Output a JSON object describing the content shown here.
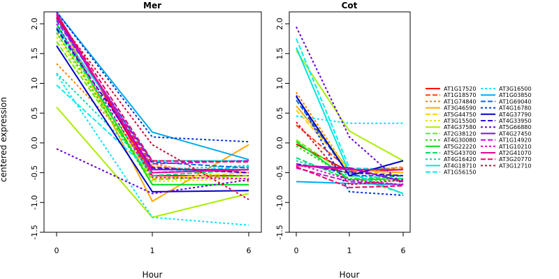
{
  "chart_data": {
    "type": "line",
    "ylabel": "centered expression",
    "xlabel": "Hour",
    "x_ticks": [
      "0",
      "1",
      "6"
    ],
    "y_ticks": [
      "-1.5",
      "-1.0",
      "-0.5",
      "0.0",
      "0.5",
      "1.0",
      "1.5",
      "2.0"
    ],
    "ylim": [
      -1.5,
      2.2
    ],
    "legend_position": "right",
    "series_styles": [
      {
        "color": "#ff0000",
        "dash": "solid"
      },
      {
        "color": "#ff4000",
        "dash": "longdash"
      },
      {
        "color": "#ff8000",
        "dash": "dashed"
      },
      {
        "color": "#ffaa00",
        "dash": "solid"
      },
      {
        "color": "#ffd000",
        "dash": "longdash"
      },
      {
        "color": "#e6e600",
        "dash": "dashed"
      },
      {
        "color": "#aaee00",
        "dash": "solid"
      },
      {
        "color": "#66ee00",
        "dash": "longdash"
      },
      {
        "color": "#22dd00",
        "dash": "dashed"
      },
      {
        "color": "#00dd22",
        "dash": "solid"
      },
      {
        "color": "#00dd66",
        "dash": "longdash"
      },
      {
        "color": "#00ddaa",
        "dash": "dashed"
      },
      {
        "color": "#00e6dd",
        "dash": "solid"
      },
      {
        "color": "#00eeee",
        "dash": "longdash"
      },
      {
        "color": "#00e5ff",
        "dash": "dashed"
      },
      {
        "color": "#00aaee",
        "dash": "solid"
      },
      {
        "color": "#0066ee",
        "dash": "longdash"
      },
      {
        "color": "#0033dd",
        "dash": "dashed"
      },
      {
        "color": "#0000cc",
        "dash": "solid"
      },
      {
        "color": "#3300dd",
        "dash": "longdash"
      },
      {
        "color": "#6600dd",
        "dash": "dashed"
      },
      {
        "color": "#9900dd",
        "dash": "solid"
      },
      {
        "color": "#cc00dd",
        "dash": "longdash"
      },
      {
        "color": "#dd00cc",
        "dash": "dashed"
      },
      {
        "color": "#ee0099",
        "dash": "solid"
      },
      {
        "color": "#ee0066",
        "dash": "longdash"
      },
      {
        "color": "#dd0033",
        "dash": "dashed"
      }
    ],
    "legend_entries": [
      "AT1G17520",
      "AT1G18570",
      "AT1G74840",
      "AT3G46590",
      "AT5G44750",
      "AT3G15500",
      "AT4G37580",
      "AT2G38120",
      "AT4G30080",
      "AT5G22220",
      "AT5G43700",
      "AT4G16420",
      "AT4G18710",
      "AT1G56150",
      "AT3G16500",
      "AT1G03850",
      "AT1G69040",
      "AT4G16780",
      "AT4G37790",
      "AT4G33950",
      "AT5G66880",
      "AT4G27450",
      "AT1G14920",
      "AT1G10210",
      "AT2G41070",
      "AT3G20770",
      "AT3G12710"
    ],
    "panels": [
      {
        "title": "Mer",
        "series": [
          {
            "values": [
              2.15,
              -0.55,
              -0.55
            ]
          },
          {
            "values": [
              2.1,
              -0.4,
              -0.5
            ]
          },
          {
            "values": [
              1.33,
              -0.35,
              -0.65
            ]
          },
          {
            "values": [
              2.15,
              -0.98,
              -0.03
            ]
          },
          {
            "values": [
              1.85,
              -0.6,
              -0.5
            ]
          },
          {
            "values": [
              1.78,
              -0.65,
              -0.6
            ]
          },
          {
            "values": [
              0.6,
              -1.25,
              -0.85
            ]
          },
          {
            "values": [
              1.7,
              -0.62,
              -0.55
            ]
          },
          {
            "values": [
              1.85,
              -0.7,
              -0.7
            ]
          },
          {
            "values": [
              2.0,
              -0.7,
              -0.7
            ]
          },
          {
            "values": [
              1.9,
              -0.55,
              -0.45
            ]
          },
          {
            "values": [
              1.17,
              -0.45,
              -0.38
            ]
          },
          {
            "values": [
              1.95,
              -0.3,
              -0.3
            ]
          },
          {
            "values": [
              0.97,
              -0.5,
              -0.4
            ]
          },
          {
            "values": [
              1.15,
              -1.25,
              -1.38
            ]
          },
          {
            "values": [
              2.2,
              0.18,
              -0.28
            ]
          },
          {
            "values": [
              2.05,
              -0.32,
              -0.42
            ]
          },
          {
            "values": [
              2.2,
              0.1,
              0.02
            ]
          },
          {
            "values": [
              1.63,
              -0.82,
              -0.8
            ]
          },
          {
            "values": [
              1.92,
              -0.42,
              -0.5
            ]
          },
          {
            "values": [
              -0.1,
              -0.85,
              -0.62
            ]
          },
          {
            "values": [
              2.12,
              -0.45,
              -0.45
            ]
          },
          {
            "values": [
              2.08,
              -0.35,
              -0.3
            ]
          },
          {
            "values": [
              2.0,
              -0.58,
              -0.6
            ]
          },
          {
            "values": [
              2.18,
              -0.5,
              -0.45
            ]
          },
          {
            "values": [
              2.15,
              -0.3,
              -0.32
            ]
          },
          {
            "values": [
              2.1,
              -0.03,
              -0.95
            ]
          }
        ]
      },
      {
        "title": "Cot",
        "series": [
          {
            "values": [
              -0.02,
              -0.48,
              -0.45
            ]
          },
          {
            "values": [
              0.3,
              -0.45,
              -0.42
            ]
          },
          {
            "values": [
              0.85,
              -0.5,
              -0.4
            ]
          },
          {
            "values": [
              0.62,
              -0.45,
              -0.5
            ]
          },
          {
            "values": [
              0.55,
              -0.45,
              -0.55
            ]
          },
          {
            "values": [
              0.78,
              -0.5,
              -0.42
            ]
          },
          {
            "values": [
              1.55,
              0.2,
              -0.3
            ]
          },
          {
            "values": [
              0.05,
              -0.55,
              -0.85
            ]
          },
          {
            "values": [
              -0.05,
              -0.6,
              -0.65
            ]
          },
          {
            "values": [
              0.02,
              -0.62,
              -0.6
            ]
          },
          {
            "values": [
              -0.25,
              -0.62,
              -0.55
            ]
          },
          {
            "values": [
              -0.3,
              -0.55,
              -0.6
            ]
          },
          {
            "values": [
              1.6,
              -0.5,
              -0.85
            ]
          },
          {
            "values": [
              1.75,
              -0.42,
              -0.45
            ]
          },
          {
            "values": [
              0.45,
              0.33,
              0.33
            ]
          },
          {
            "values": [
              -0.65,
              -0.68,
              -0.7
            ]
          },
          {
            "values": [
              0.72,
              -0.55,
              -0.55
            ]
          },
          {
            "values": [
              0.8,
              -0.82,
              -0.88
            ]
          },
          {
            "values": [
              0.78,
              -0.55,
              -0.3
            ]
          },
          {
            "values": [
              -0.35,
              -0.5,
              -0.55
            ]
          },
          {
            "values": [
              1.95,
              0.1,
              -0.7
            ]
          },
          {
            "values": [
              -0.38,
              -0.42,
              -0.65
            ]
          },
          {
            "values": [
              -0.42,
              -0.65,
              -0.7
            ]
          },
          {
            "values": [
              -0.35,
              -0.62,
              -0.7
            ]
          },
          {
            "values": [
              -0.38,
              -0.45,
              -0.45
            ]
          },
          {
            "values": [
              -0.4,
              -0.75,
              -0.72
            ]
          },
          {
            "values": [
              0.35,
              -0.7,
              -0.62
            ]
          }
        ]
      }
    ]
  }
}
